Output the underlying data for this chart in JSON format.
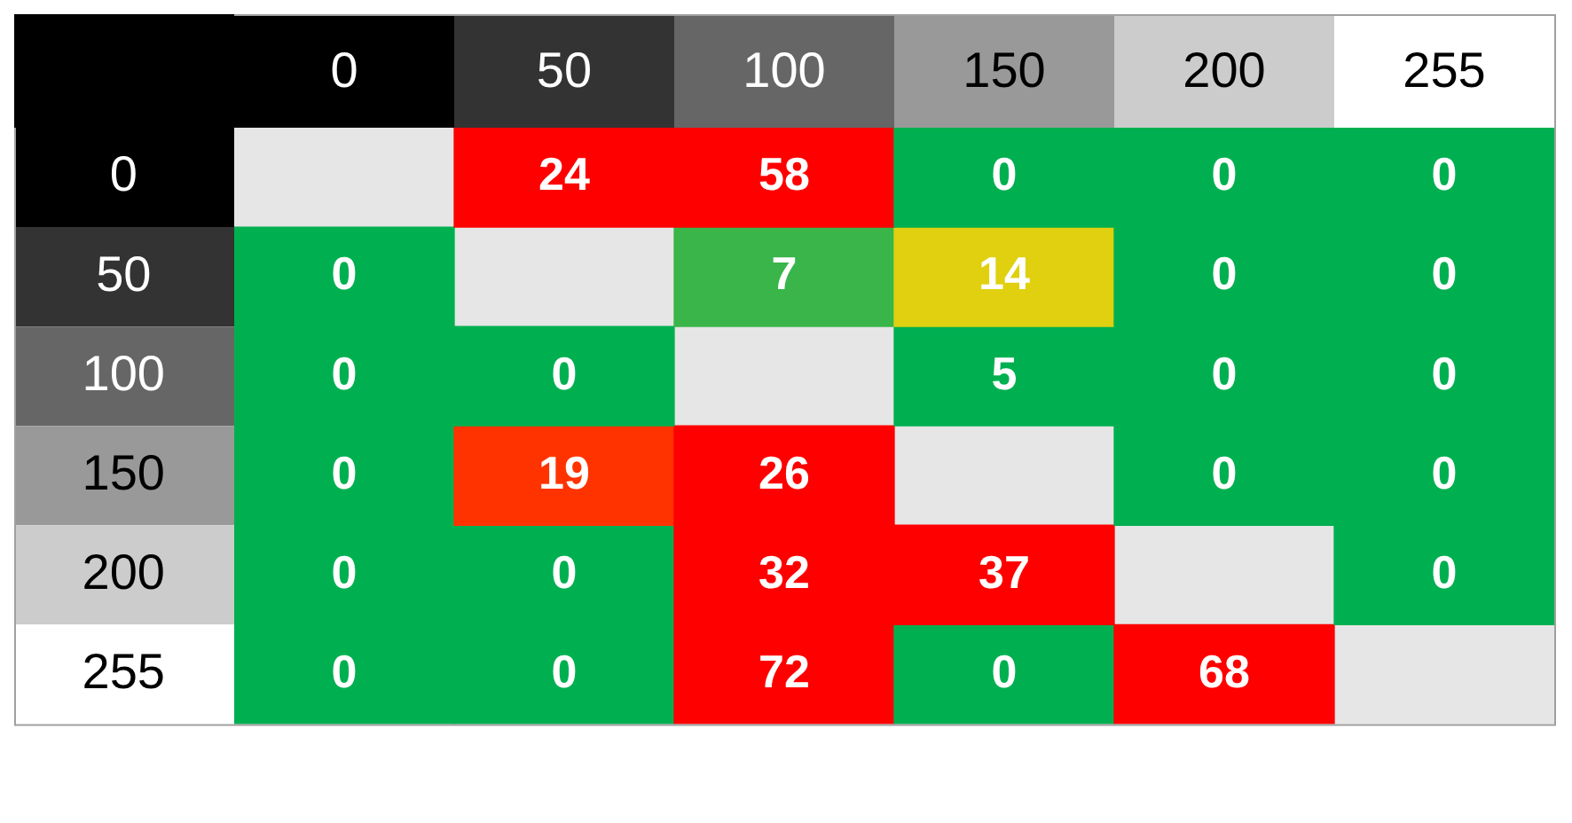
{
  "chart_data": {
    "type": "heatmap",
    "categories": [
      "0",
      "50",
      "100",
      "150",
      "200",
      "255"
    ],
    "y_categories": [
      "0",
      "50",
      "100",
      "150",
      "200",
      "255"
    ],
    "cells": [
      [
        null,
        24,
        58,
        0,
        0,
        0
      ],
      [
        0,
        null,
        7,
        14,
        0,
        0
      ],
      [
        0,
        0,
        null,
        5,
        0,
        0
      ],
      [
        0,
        19,
        26,
        null,
        0,
        0
      ],
      [
        0,
        0,
        32,
        37,
        null,
        0
      ],
      [
        0,
        0,
        72,
        0,
        68,
        null
      ]
    ],
    "colors": [
      [
        null,
        "#ff0000",
        "#ff0000",
        "#00b050",
        "#00b050",
        "#00b050"
      ],
      [
        "#00b050",
        null,
        "#39b54a",
        "#e0d010",
        "#00b050",
        "#00b050"
      ],
      [
        "#00b050",
        "#00b050",
        null,
        "#00b050",
        "#00b050",
        "#00b050"
      ],
      [
        "#00b050",
        "#ff3300",
        "#ff0000",
        null,
        "#00b050",
        "#00b050"
      ],
      [
        "#00b050",
        "#00b050",
        "#ff0000",
        "#ff0000",
        null,
        "#00b050"
      ],
      [
        "#00b050",
        "#00b050",
        "#ff0000",
        "#00b050",
        "#ff0000",
        null
      ]
    ],
    "data_labels": true
  }
}
